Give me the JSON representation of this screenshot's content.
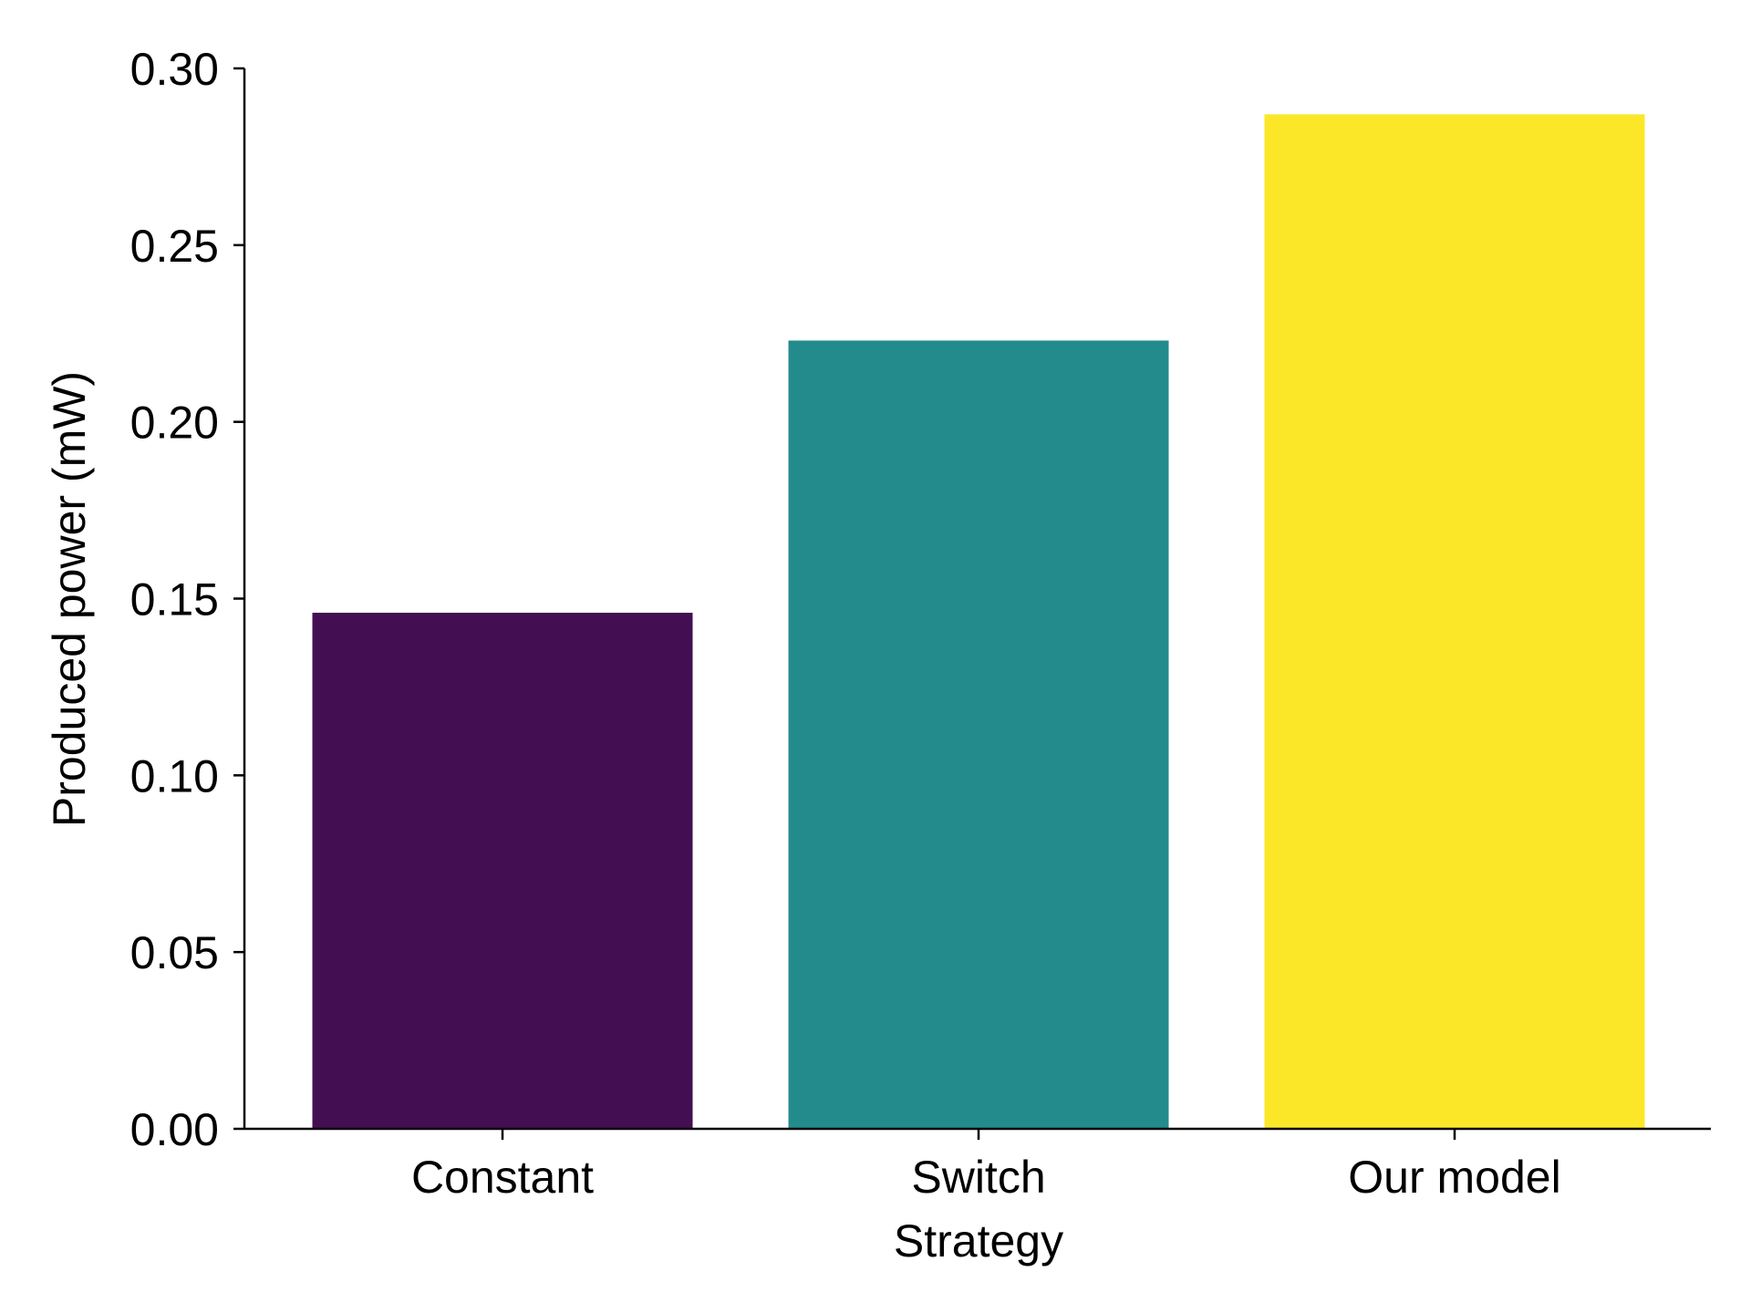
{
  "chart_data": {
    "type": "bar",
    "categories": [
      "Constant",
      "Switch",
      "Our model"
    ],
    "values": [
      0.146,
      0.223,
      0.287
    ],
    "colors": [
      "#440f52",
      "#248b8c",
      "#fbe727"
    ],
    "title": "",
    "xlabel": "Strategy",
    "ylabel": "Produced power (mW)",
    "ylim": [
      0,
      0.3
    ],
    "yticks": [
      0.0,
      0.05,
      0.1,
      0.15,
      0.2,
      0.25,
      0.3
    ],
    "ytick_labels": [
      "0.00",
      "0.05",
      "0.10",
      "0.15",
      "0.20",
      "0.25",
      "0.30"
    ],
    "grid": false,
    "legend": "none"
  }
}
